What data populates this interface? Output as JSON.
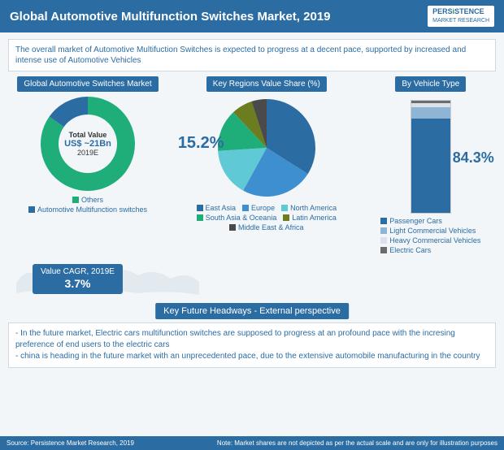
{
  "header": {
    "title": "Global Automotive Multifunction Switches Market, 2019",
    "logo_top": "PERS",
    "logo_i": "i",
    "logo_rest": "STENCE",
    "logo_sub": "MARKET RESEARCH"
  },
  "intro": "The overall market of Automotive Multifuction Switches is expected to progress at a decent pace, supported by increased and intense use of Automotive Vehicles",
  "donut": {
    "title": "Global Automotive Switches Market",
    "center_label": "Total Value",
    "center_value": "US$ ~21Bn",
    "center_year": "2019E",
    "slices": [
      {
        "label": "Others",
        "value": 84.8,
        "color": "#1fae7a"
      },
      {
        "label": "Automotive Multifunction switches",
        "value": 15.2,
        "color": "#2b6ca3"
      }
    ],
    "inner_radius": 36,
    "outer_radius": 58
  },
  "pie": {
    "title": "Key Regions Value Share (%)",
    "callout": "15.2%",
    "slices": [
      {
        "label": "East Asia",
        "value": 34,
        "color": "#2b6ca3"
      },
      {
        "label": "Europe",
        "value": 24,
        "color": "#3d8fcf"
      },
      {
        "label": "North America",
        "value": 16,
        "color": "#5fc9d6"
      },
      {
        "label": "South Asia & Oceania",
        "value": 14,
        "color": "#1fae7a"
      },
      {
        "label": "Latin America",
        "value": 7,
        "color": "#6b7d1f"
      },
      {
        "label": "Middle East & Africa",
        "value": 5,
        "color": "#4a4a4a"
      }
    ],
    "radius": 60
  },
  "stack": {
    "title": "By Vehicle Type",
    "callout": "84.3%",
    "segments": [
      {
        "label": "Electric Cars",
        "value": 2,
        "color": "#6b6b6b"
      },
      {
        "label": "Heavy Commercial Vehicles",
        "value": 4,
        "color": "#d9e2ea"
      },
      {
        "label": "Light Commercial Vehicles",
        "value": 9.7,
        "color": "#8fb4d4"
      },
      {
        "label": "Passenger Cars",
        "value": 84.3,
        "color": "#2b6ca3"
      }
    ],
    "legend_order": [
      "Passenger Cars",
      "Light Commercial Vehicles",
      "Heavy Commercial Vehicles",
      "Electric Cars"
    ]
  },
  "cagr": {
    "label": "Value CAGR, 2019E",
    "value": "3.7%"
  },
  "future": {
    "title": "Key Future Headways - External perspective",
    "bullets": [
      "In the future market, Electric cars multifunction switches are supposed to progress at an profound pace with the incresing preference of end users to the electric cars",
      "china is heading in the future market with an unprecedented pace, due to the extensive automobile manufacturing in the country"
    ]
  },
  "footer": {
    "left": "Source: Persistence Market Research, 2019",
    "right": "Note: Market shares are not depicted as per the actual scale and are only for illustration purposes"
  }
}
